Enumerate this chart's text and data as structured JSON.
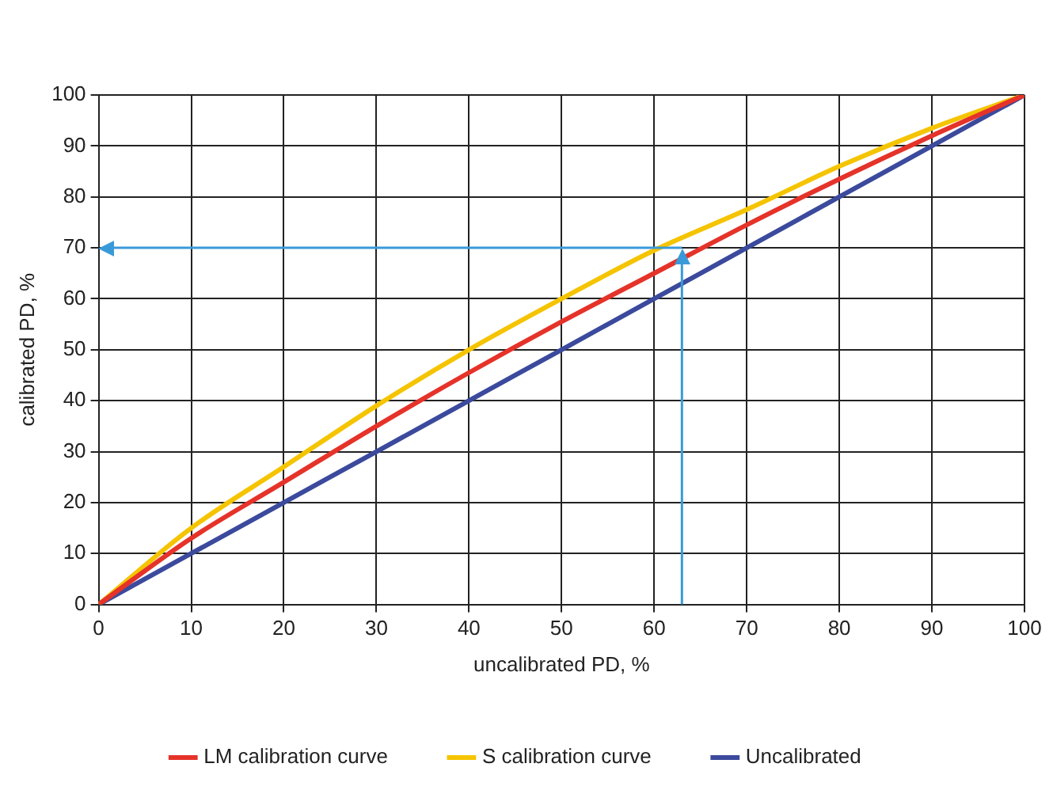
{
  "chart_data": {
    "type": "line",
    "xlabel": "uncalibrated PD, %",
    "ylabel": "calibrated PD, %",
    "x": [
      0,
      10,
      20,
      30,
      40,
      50,
      60,
      70,
      80,
      90,
      100
    ],
    "series": [
      {
        "name": "LM calibration curve",
        "color": "#e5332a",
        "values": [
          0,
          13,
          24,
          35,
          45.5,
          55.5,
          65,
          74.5,
          83.5,
          92,
          100
        ]
      },
      {
        "name": "S calibration curve",
        "color": "#f5c400",
        "values": [
          0,
          15,
          27,
          39,
          50,
          60,
          69.5,
          77.5,
          86,
          93.5,
          100
        ]
      },
      {
        "name": "Uncalibrated",
        "color": "#3b4a9c",
        "values": [
          0,
          10,
          20,
          30,
          40,
          50,
          60,
          70,
          80,
          90,
          100
        ]
      }
    ],
    "xlim": [
      0,
      100
    ],
    "xticks": [
      0,
      10,
      20,
      30,
      40,
      50,
      60,
      70,
      80,
      90,
      100
    ],
    "ylim": [
      0,
      100
    ],
    "yticks": [
      0,
      10,
      20,
      30,
      40,
      50,
      60,
      70,
      80,
      90,
      100
    ],
    "ref_lines": [
      {
        "axis": "x",
        "value": 63,
        "color": "#3a9ad9"
      },
      {
        "axis": "y",
        "value": 70,
        "color": "#3a9ad9"
      }
    ],
    "grid": true,
    "legend": "bottom",
    "marker": "none",
    "line_style": "solid"
  }
}
